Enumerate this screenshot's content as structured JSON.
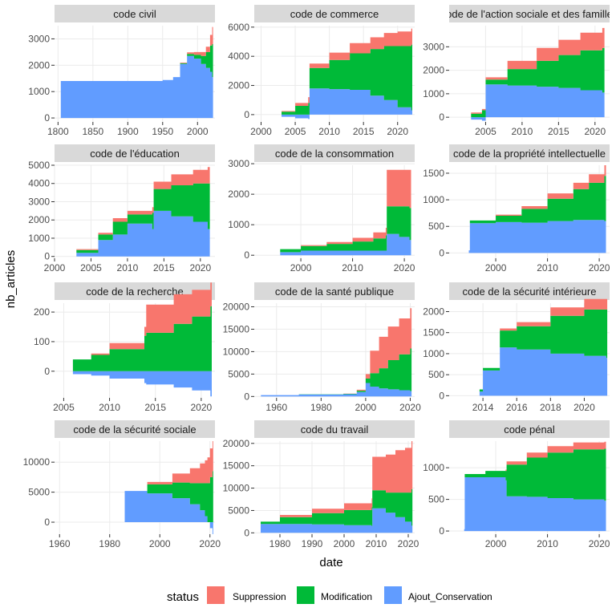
{
  "chart_data": {
    "type": "area",
    "xlabel": "date",
    "ylabel": "nb_articles",
    "grid": true,
    "legend": {
      "title": "status",
      "position": "bottom",
      "entries": [
        {
          "name": "Suppression",
          "color": "#F8766D"
        },
        {
          "name": "Modification",
          "color": "#00BA38"
        },
        {
          "name": "Ajout_Conservation",
          "color": "#619CFF"
        }
      ]
    },
    "stack_order": [
      "Ajout_Conservation",
      "Modification",
      "Suppression"
    ],
    "panels": [
      {
        "title": "code civil",
        "xlim": [
          1795,
          2025
        ],
        "ylim": [
          -150,
          3500
        ],
        "xticks": [
          1800,
          1850,
          1900,
          1950,
          2000
        ],
        "yticks": [
          0,
          1000,
          2000,
          3000
        ],
        "x": [
          1804,
          1850,
          1900,
          1950,
          1965,
          1975,
          1985,
          1995,
          2005,
          2012,
          2018,
          2021
        ],
        "series": [
          {
            "name": "Ajout_Conservation",
            "values": [
              1400,
              1400,
              1400,
              1440,
              1550,
              2050,
              2350,
              2250,
              2050,
              1900,
              1750,
              1550
            ]
          },
          {
            "name": "Modification",
            "values": [
              0,
              0,
              0,
              0,
              0,
              30,
              80,
              150,
              300,
              600,
              1000,
              1250
            ]
          },
          {
            "name": "Suppression",
            "values": [
              0,
              0,
              0,
              0,
              0,
              20,
              60,
              100,
              150,
              200,
              400,
              650
            ]
          }
        ]
      },
      {
        "title": "code de commerce",
        "xlim": [
          1999,
          2022.5
        ],
        "ylim": [
          -500,
          6100
        ],
        "xticks": [
          2000,
          2005,
          2010,
          2015,
          2020
        ],
        "yticks": [
          0,
          2000,
          4000,
          6000
        ],
        "x": [
          2000,
          2003,
          2005,
          2006.9,
          2007.1,
          2010,
          2013,
          2016,
          2018,
          2020,
          2022
        ],
        "series": [
          {
            "name": "Ajout_Conservation",
            "values": [
              0,
              -150,
              -250,
              -300,
              1800,
              1750,
              1700,
              1300,
              1000,
              500,
              300
            ]
          },
          {
            "name": "Modification",
            "values": [
              0,
              200,
              600,
              800,
              1400,
              2000,
              2500,
              3200,
              3700,
              4200,
              4500
            ]
          },
          {
            "name": "Suppression",
            "values": [
              0,
              50,
              200,
              400,
              300,
              500,
              700,
              800,
              900,
              1000,
              1100
            ]
          }
        ]
      },
      {
        "title": "code de l'action sociale et des familles",
        "xlim": [
          2000,
          2022
        ],
        "ylim": [
          -200,
          3900
        ],
        "xticks": [
          2005,
          2010,
          2015,
          2020
        ],
        "yticks": [
          0,
          1000,
          2000,
          3000
        ],
        "x": [
          2001,
          2003,
          2004.5,
          2005,
          2008,
          2012,
          2015,
          2018,
          2021
        ],
        "series": [
          {
            "name": "Ajout_Conservation",
            "values": [
              0,
              -100,
              -150,
              1400,
              1350,
              1300,
              1250,
              1150,
              1050
            ]
          },
          {
            "name": "Modification",
            "values": [
              0,
              150,
              300,
              200,
              700,
              1100,
              1400,
              1700,
              1900
            ]
          },
          {
            "name": "Suppression",
            "values": [
              0,
              50,
              50,
              100,
              350,
              550,
              650,
              750,
              850
            ]
          }
        ]
      },
      {
        "title": "code de l'éducation",
        "xlim": [
          2000,
          2022
        ],
        "ylim": [
          -100,
          5000
        ],
        "xticks": [
          2000,
          2005,
          2010,
          2015,
          2020
        ],
        "yticks": [
          0,
          1000,
          2000,
          3000,
          4000,
          5000
        ],
        "x": [
          2000,
          2003,
          2006,
          2008,
          2010,
          2013.4,
          2013.6,
          2016,
          2019,
          2021
        ],
        "series": [
          {
            "name": "Ajout_Conservation",
            "values": [
              0,
              200,
              900,
              1200,
              1800,
              1500,
              2500,
              2200,
              1900,
              1500
            ]
          },
          {
            "name": "Modification",
            "values": [
              0,
              150,
              300,
              700,
              500,
              900,
              1200,
              1700,
              2100,
              2500
            ]
          },
          {
            "name": "Suppression",
            "values": [
              0,
              50,
              100,
              200,
              200,
              300,
              400,
              600,
              750,
              900
            ]
          }
        ]
      },
      {
        "title": "code de la consommation",
        "xlim": [
          1991,
          2022
        ],
        "ylim": [
          -100,
          2950
        ],
        "xticks": [
          2000,
          2010,
          2020
        ],
        "yticks": [
          0,
          1000,
          2000,
          3000
        ],
        "x": [
          1993,
          1996,
          2000,
          2005,
          2010,
          2014,
          2016.4,
          2016.6,
          2019,
          2021
        ],
        "series": [
          {
            "name": "Ajout_Conservation",
            "values": [
              0,
              100,
              150,
              150,
              150,
              150,
              150,
              700,
              600,
              500
            ]
          },
          {
            "name": "Modification",
            "values": [
              0,
              100,
              150,
              220,
              300,
              400,
              500,
              900,
              1000,
              1050
            ]
          },
          {
            "name": "Suppression",
            "values": [
              0,
              0,
              30,
              60,
              120,
              200,
              250,
              1200,
              1200,
              1250
            ]
          }
        ]
      },
      {
        "title": "code de la propriété intellectuelle",
        "xlim": [
          1991,
          2022
        ],
        "ylim": [
          -100,
          1650
        ],
        "xticks": [
          2000,
          2010,
          2020
        ],
        "yticks": [
          0,
          500,
          1000,
          1500
        ],
        "x": [
          1992,
          1994.8,
          1995,
          2000,
          2005,
          2010,
          2015,
          2018,
          2021
        ],
        "series": [
          {
            "name": "Ajout_Conservation",
            "values": [
              0,
              50,
              560,
              580,
              570,
              600,
              620,
              620,
              600
            ]
          },
          {
            "name": "Modification",
            "values": [
              0,
              0,
              50,
              120,
              260,
              420,
              580,
              700,
              850
            ]
          },
          {
            "name": "Suppression",
            "values": [
              0,
              0,
              0,
              20,
              50,
              100,
              120,
              160,
              200
            ]
          }
        ]
      },
      {
        "title": "code de la recherche",
        "xlim": [
          2004,
          2021.5
        ],
        "ylim": [
          -90,
          230
        ],
        "xticks": [
          2005,
          2010,
          2015,
          2020
        ],
        "yticks": [
          0,
          100,
          200
        ],
        "x": [
          2004.5,
          2006,
          2008,
          2010,
          2013.8,
          2014,
          2017,
          2019,
          2021
        ],
        "series": [
          {
            "name": "Ajout_Conservation",
            "values": [
              0,
              -10,
              -15,
              -25,
              -40,
              -45,
              -55,
              -65,
              -85
            ]
          },
          {
            "name": "Modification",
            "values": [
              0,
              40,
              55,
              75,
              120,
              130,
              160,
              185,
              220
            ]
          },
          {
            "name": "Suppression",
            "values": [
              0,
              0,
              5,
              20,
              30,
              95,
              100,
              90,
              80
            ]
          }
        ]
      },
      {
        "title": "code de la santé publique",
        "xlim": [
          1950,
          2022
        ],
        "ylim": [
          -300,
          20800
        ],
        "xticks": [
          1960,
          1980,
          2000,
          2020
        ],
        "yticks": [
          0,
          5000,
          10000,
          15000,
          20000
        ],
        "x": [
          1953,
          1970,
          1990,
          1996,
          2000,
          2002,
          2006,
          2010,
          2015,
          2020
        ],
        "series": [
          {
            "name": "Ajout_Conservation",
            "values": [
              300,
              450,
              500,
              1000,
              3000,
              2200,
              1800,
              1600,
              1400,
              1200
            ]
          },
          {
            "name": "Modification",
            "values": [
              0,
              50,
              100,
              300,
              1000,
              3000,
              4500,
              6500,
              8000,
              9500
            ]
          },
          {
            "name": "Suppression",
            "values": [
              0,
              0,
              50,
              200,
              1000,
              5000,
              7000,
              7500,
              8000,
              9000
            ]
          }
        ]
      },
      {
        "title": "code de la sécurité intérieure",
        "xlim": [
          2012,
          2021.5
        ],
        "ylim": [
          -50,
          2200
        ],
        "xticks": [
          2014,
          2016,
          2018,
          2020
        ],
        "yticks": [
          0,
          500,
          1000,
          1500,
          2000
        ],
        "x": [
          2012.2,
          2013.8,
          2014,
          2015,
          2016,
          2018,
          2020,
          2021.3
        ],
        "series": [
          {
            "name": "Ajout_Conservation",
            "values": [
              0,
              100,
              600,
              1150,
              1100,
              1000,
              950,
              900
            ]
          },
          {
            "name": "Modification",
            "values": [
              0,
              50,
              60,
              400,
              550,
              900,
              1100,
              1150
            ]
          },
          {
            "name": "Suppression",
            "values": [
              0,
              0,
              0,
              50,
              100,
              200,
              250,
              250
            ]
          }
        ]
      },
      {
        "title": "code de la sécurité sociale",
        "xlim": [
          1958,
          2022
        ],
        "ylim": [
          -2000,
          13500
        ],
        "xticks": [
          1960,
          1980,
          2000,
          2020
        ],
        "yticks": [
          0,
          5000,
          10000
        ],
        "x": [
          1960,
          1985.5,
          1986,
          1995,
          2005,
          2012,
          2016,
          2018,
          2019,
          2020,
          2021
        ],
        "series": [
          {
            "name": "Ajout_Conservation",
            "values": [
              0,
              0,
              5200,
              4800,
              4000,
              3000,
              2000,
              1000,
              0,
              -1000,
              -2000
            ]
          },
          {
            "name": "Modification",
            "values": [
              0,
              0,
              0,
              1500,
              2600,
              3500,
              4500,
              5500,
              6500,
              7500,
              8500
            ]
          },
          {
            "name": "Suppression",
            "values": [
              0,
              0,
              0,
              400,
              1500,
              2500,
              3300,
              3800,
              4300,
              4800,
              5000
            ]
          }
        ]
      },
      {
        "title": "code du travail",
        "xlim": [
          1972,
          2022
        ],
        "ylim": [
          -300,
          20500
        ],
        "xticks": [
          1980,
          1990,
          2000,
          2010,
          2020
        ],
        "yticks": [
          0,
          5000,
          10000,
          15000,
          20000
        ],
        "x": [
          1974,
          1980,
          1990,
          2000,
          2008.6,
          2008.8,
          2013,
          2016,
          2019,
          2021
        ],
        "series": [
          {
            "name": "Ajout_Conservation",
            "values": [
              2000,
              2000,
              1900,
              1700,
              1500,
              5500,
              4500,
              3500,
              2500,
              1600
            ]
          },
          {
            "name": "Modification",
            "values": [
              500,
              1500,
              2500,
              3400,
              4200,
              4000,
              4500,
              5500,
              6500,
              8200
            ]
          },
          {
            "name": "Suppression",
            "values": [
              0,
              500,
              1000,
              1500,
              2000,
              7500,
              8500,
              9500,
              10000,
              10700
            ]
          }
        ]
      },
      {
        "title": "code pénal",
        "xlim": [
          1991,
          2022
        ],
        "ylim": [
          -50,
          1420
        ],
        "xticks": [
          2000,
          2010,
          2020
        ],
        "yticks": [
          0,
          500,
          1000
        ],
        "x": [
          1992,
          1993.9,
          1994,
          1998,
          2001.9,
          2002.1,
          2006,
          2010,
          2015,
          2021
        ],
        "series": [
          {
            "name": "Ajout_Conservation",
            "values": [
              0,
              30,
              850,
              850,
              800,
              550,
              540,
              520,
              500,
              480
            ]
          },
          {
            "name": "Modification",
            "values": [
              0,
              0,
              50,
              100,
              150,
              500,
              620,
              720,
              790,
              820
            ]
          },
          {
            "name": "Suppression",
            "values": [
              0,
              0,
              0,
              0,
              20,
              50,
              80,
              100,
              110,
              110
            ]
          }
        ]
      }
    ]
  }
}
